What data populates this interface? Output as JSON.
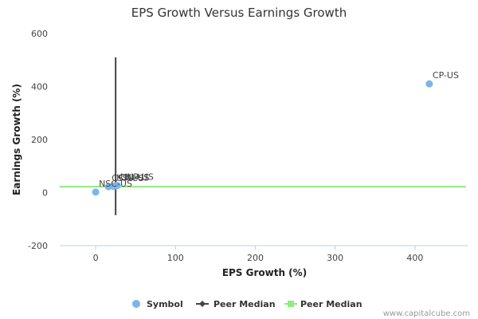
{
  "chart_data": {
    "type": "scatter",
    "title": "EPS Growth Versus Earnings Growth",
    "xlabel": "EPS Growth (%)",
    "ylabel": "Earnings Growth (%)",
    "xlim": [
      -45,
      467
    ],
    "ylim": [
      -200,
      600
    ],
    "xticks": [
      0,
      100,
      200,
      300,
      400
    ],
    "yticks": [
      -200,
      0,
      200,
      400,
      600
    ],
    "grid": false,
    "series": [
      {
        "name": "Symbol",
        "color": "#7cb5ec",
        "points": [
          {
            "label": "CP-US",
            "x": 418,
            "y": 410
          },
          {
            "label": "NSC-US",
            "x": 0,
            "y": 2
          },
          {
            "label": "CSX-US",
            "x": 16,
            "y": 22
          },
          {
            "label": "KSU-US",
            "x": 22,
            "y": 24
          },
          {
            "label": "CNI-US",
            "x": 25,
            "y": 26
          },
          {
            "label": "UNP-US",
            "x": 27,
            "y": 27
          }
        ]
      }
    ],
    "peer_median_x": {
      "name": "Peer Median",
      "value": 25,
      "color": "#434348",
      "y_range": [
        -85,
        510
      ]
    },
    "peer_median_y": {
      "name": "Peer Median",
      "value": 22,
      "color": "#90ed7d"
    },
    "legend": {
      "position": "bottom",
      "items": [
        "Symbol",
        "Peer Median",
        "Peer Median"
      ]
    }
  },
  "credit": "www.capitalcube.com"
}
